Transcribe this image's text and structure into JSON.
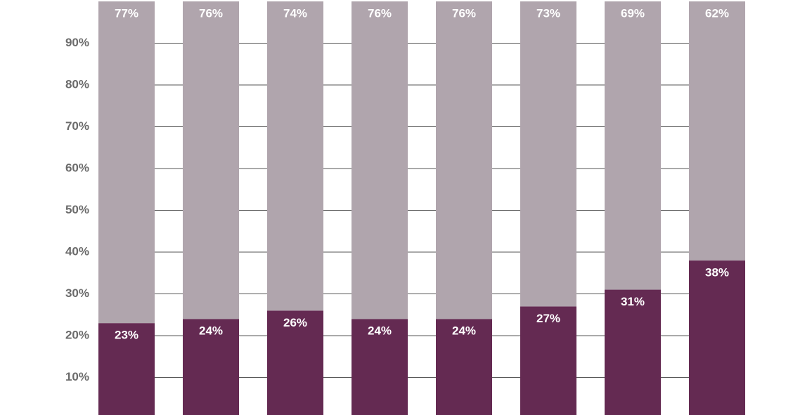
{
  "chart_data": {
    "type": "stacked-bar",
    "categories": [
      null,
      null,
      null,
      null,
      null,
      null,
      null,
      null
    ],
    "series": [
      {
        "color": "#642a52",
        "values": [
          23,
          24,
          26,
          24,
          24,
          27,
          31,
          38
        ],
        "value_labels": [
          "23%",
          "24%",
          "26%",
          "24%",
          "24%",
          "27%",
          "31%",
          "38%"
        ]
      },
      {
        "color": "#b0a5ad",
        "values": [
          77,
          76,
          74,
          76,
          76,
          73,
          69,
          62
        ],
        "value_labels": [
          "77%",
          "76%",
          "74%",
          "76%",
          "76%",
          "73%",
          "69%",
          "62%"
        ]
      }
    ],
    "ylim": [
      0,
      100
    ],
    "yticks": [
      {
        "value": 10,
        "label": "10%"
      },
      {
        "value": 20,
        "label": "20%"
      },
      {
        "value": 30,
        "label": "30%"
      },
      {
        "value": 40,
        "label": "40%"
      },
      {
        "value": 50,
        "label": "50%"
      },
      {
        "value": 60,
        "label": "60%"
      },
      {
        "value": 70,
        "label": "70%"
      },
      {
        "value": 80,
        "label": "80%"
      },
      {
        "value": 90,
        "label": "90%"
      }
    ],
    "grid": true
  }
}
